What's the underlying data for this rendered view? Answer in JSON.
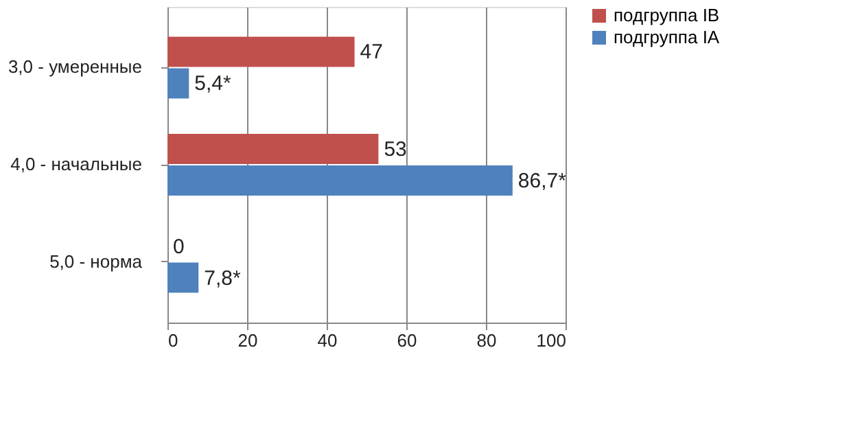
{
  "chart_data": {
    "type": "bar",
    "orientation": "horizontal",
    "categories": [
      "3,0 - умеренные",
      "4,0 - начальные",
      "5,0 - норма"
    ],
    "series": [
      {
        "name": "подгруппа IB",
        "color": "#c0504d",
        "values": [
          47,
          53,
          0
        ],
        "value_labels": [
          "47",
          "53",
          "0"
        ]
      },
      {
        "name": "подгруппа IA",
        "color": "#4f81bd",
        "values": [
          5.4,
          86.7,
          7.8
        ],
        "value_labels": [
          "5,4*",
          "86,7*",
          "7,8*"
        ]
      }
    ],
    "xlim": [
      0,
      100
    ],
    "xticks": [
      0,
      20,
      40,
      60,
      80,
      100
    ],
    "grid": "x",
    "legend": "right"
  }
}
